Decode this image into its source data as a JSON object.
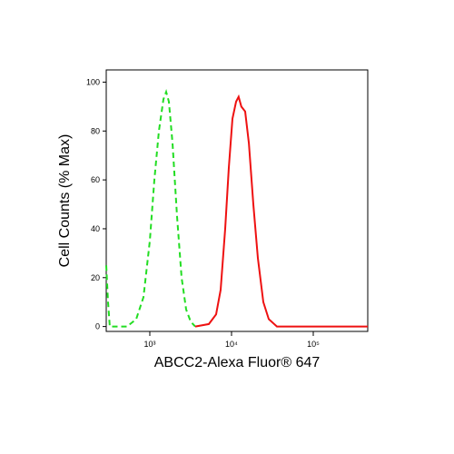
{
  "chart_data": {
    "type": "line",
    "x_label": "ABCC2-Alexa Fluor® 647",
    "y_label": "Cell Counts (% Max)",
    "xscale": "log",
    "xlim": [
      293,
      464159
    ],
    "ylim": [
      -2,
      105
    ],
    "xticks": [
      {
        "value": 1000,
        "label": "10³"
      },
      {
        "value": 10000,
        "label": "10⁴"
      },
      {
        "value": 100000,
        "label": "10⁵"
      }
    ],
    "yticks": [
      0,
      20,
      40,
      60,
      80,
      100
    ],
    "series": [
      {
        "color": "#22dd22",
        "dash": true,
        "x": [
          293,
          308,
          324,
          527,
          681,
          836,
          1000,
          1137,
          1292,
          1468,
          1585,
          1711,
          1896,
          2154,
          2448,
          2783,
          3162,
          3594
        ],
        "values": [
          25,
          10,
          0,
          0,
          3,
          12,
          35,
          60,
          80,
          93,
          96,
          92,
          75,
          45,
          20,
          7,
          2,
          0
        ]
      },
      {
        "color": "#ee1111",
        "dash": false,
        "x": [
          3594,
          5275,
          6469,
          7356,
          8358,
          9261,
          10257,
          11365,
          12220,
          13183,
          14678,
          16292,
          18478,
          20994,
          24484,
          28553,
          35938,
          464159
        ],
        "values": [
          0,
          1,
          5,
          15,
          40,
          65,
          85,
          92,
          94,
          90,
          88,
          75,
          50,
          28,
          10,
          3,
          0,
          0
        ]
      }
    ]
  }
}
